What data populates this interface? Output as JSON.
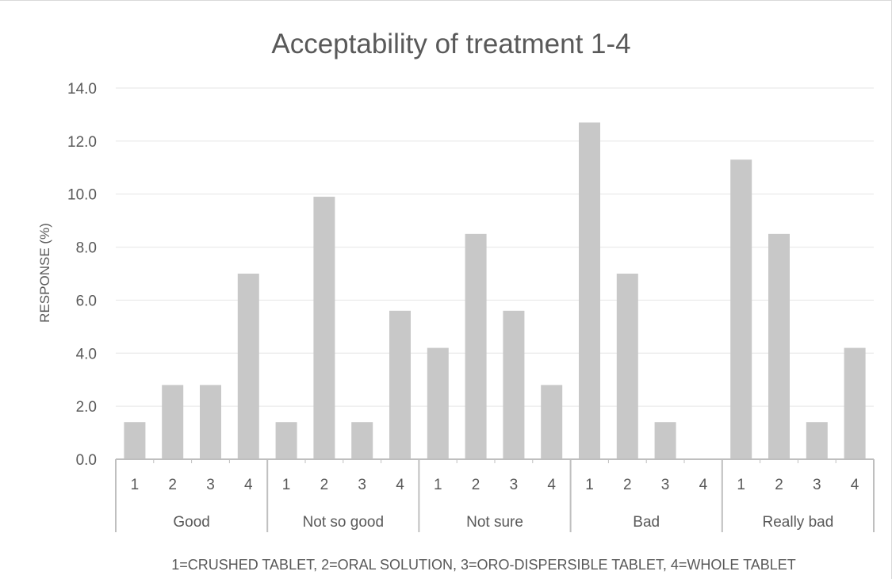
{
  "chart_data": {
    "type": "bar",
    "title": "Acceptability of treatment 1-4",
    "ylabel": "RESPONSE (%)",
    "xlabel": "1=CRUSHED TABLET, 2=ORAL SOLUTION, 3=ORO-DISPERSIBLE TABLET, 4=WHOLE TABLET",
    "ylim": [
      0,
      14
    ],
    "yticks": [
      "0.0",
      "2.0",
      "4.0",
      "6.0",
      "8.0",
      "10.0",
      "12.0",
      "14.0"
    ],
    "grid": true,
    "bar_color": "#c8c8c8",
    "groups": [
      {
        "name": "Good",
        "categories": [
          "1",
          "2",
          "3",
          "4"
        ],
        "values": [
          1.4,
          2.8,
          2.8,
          7.0
        ]
      },
      {
        "name": "Not so good",
        "categories": [
          "1",
          "2",
          "3",
          "4"
        ],
        "values": [
          1.4,
          9.9,
          1.4,
          5.6
        ]
      },
      {
        "name": "Not sure",
        "categories": [
          "1",
          "2",
          "3",
          "4"
        ],
        "values": [
          4.2,
          8.5,
          5.6,
          2.8
        ]
      },
      {
        "name": "Bad",
        "categories": [
          "1",
          "2",
          "3",
          "4"
        ],
        "values": [
          12.7,
          7.0,
          1.4,
          0.0
        ]
      },
      {
        "name": "Really bad",
        "categories": [
          "1",
          "2",
          "3",
          "4"
        ],
        "values": [
          11.3,
          8.5,
          1.4,
          4.2
        ]
      }
    ]
  }
}
